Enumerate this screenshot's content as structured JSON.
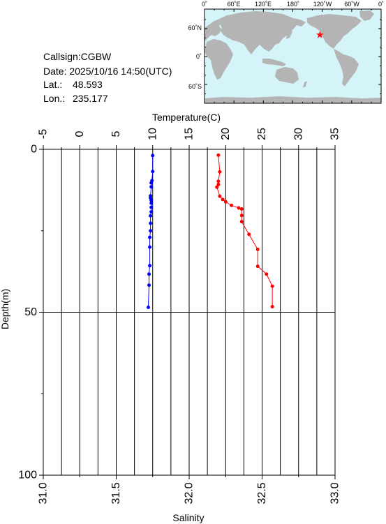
{
  "info": {
    "callsign": "Callsign:CGBW",
    "date": "Date:  2025/10/16 14:50(UTC)",
    "lat_label": "Lat.:",
    "lat_value": "48.593",
    "lon_label": "Lon.:",
    "lon_value": "235.177"
  },
  "map": {
    "lon_labels": [
      "0˚",
      "60˚E",
      "120˚E",
      "180˚",
      "120˚W",
      "60˚W",
      "0˚"
    ],
    "lat_labels": [
      "60˚N",
      "0˚",
      "60˚S"
    ],
    "ocean_color": "#d4f4fa",
    "land_color": "#b4b4b4",
    "marker": {
      "lat": 48.593,
      "lon": 235.177,
      "color": "#ff0000",
      "icon": "star-icon"
    }
  },
  "chart_data": {
    "type": "line",
    "top_axis": {
      "label": "Temperature(C)",
      "range": [
        -5,
        35
      ],
      "ticks": [
        "-5",
        "0",
        "5",
        "10",
        "15",
        "20",
        "25",
        "30",
        "35"
      ]
    },
    "bottom_axis": {
      "label": "Salinity",
      "range": [
        31.0,
        33.0
      ],
      "ticks": [
        "31.0",
        "31.5",
        "32.0",
        "32.5",
        "33.0"
      ]
    },
    "y_axis": {
      "label": "Depth(m)",
      "range": [
        0,
        100
      ],
      "inverted": true,
      "ticks": [
        "0",
        "50",
        "100"
      ]
    },
    "grid": true,
    "series": [
      {
        "axis": "temperature",
        "color": "#0000ff",
        "depth": [
          1.9,
          6.8,
          9.6,
          10.3,
          11.5,
          14.3,
          14.9,
          15.6,
          16.5,
          17.8,
          19.2,
          20.4,
          22.7,
          25.0,
          27.0,
          30.0,
          35.7,
          38.3,
          41.7,
          48.5
        ],
        "values": [
          10.0,
          10.0,
          9.9,
          9.8,
          9.8,
          9.7,
          9.7,
          9.8,
          9.8,
          9.8,
          9.8,
          9.7,
          9.7,
          9.7,
          9.6,
          9.6,
          9.6,
          9.5,
          9.5,
          9.4
        ]
      },
      {
        "axis": "salinity",
        "color": "#ff0000",
        "depth": [
          1.8,
          6.9,
          9.8,
          10.8,
          11.6,
          14.4,
          15.4,
          16.1,
          17.2,
          18.0,
          18.3,
          20.3,
          22.2,
          26.1,
          30.7,
          35.9,
          38.3,
          42.0,
          48.3
        ],
        "values": [
          32.2,
          32.21,
          32.2,
          32.2,
          32.19,
          32.21,
          32.23,
          32.25,
          32.29,
          32.34,
          32.36,
          32.36,
          32.36,
          32.41,
          32.47,
          32.47,
          32.53,
          32.57,
          32.57
        ]
      }
    ]
  }
}
